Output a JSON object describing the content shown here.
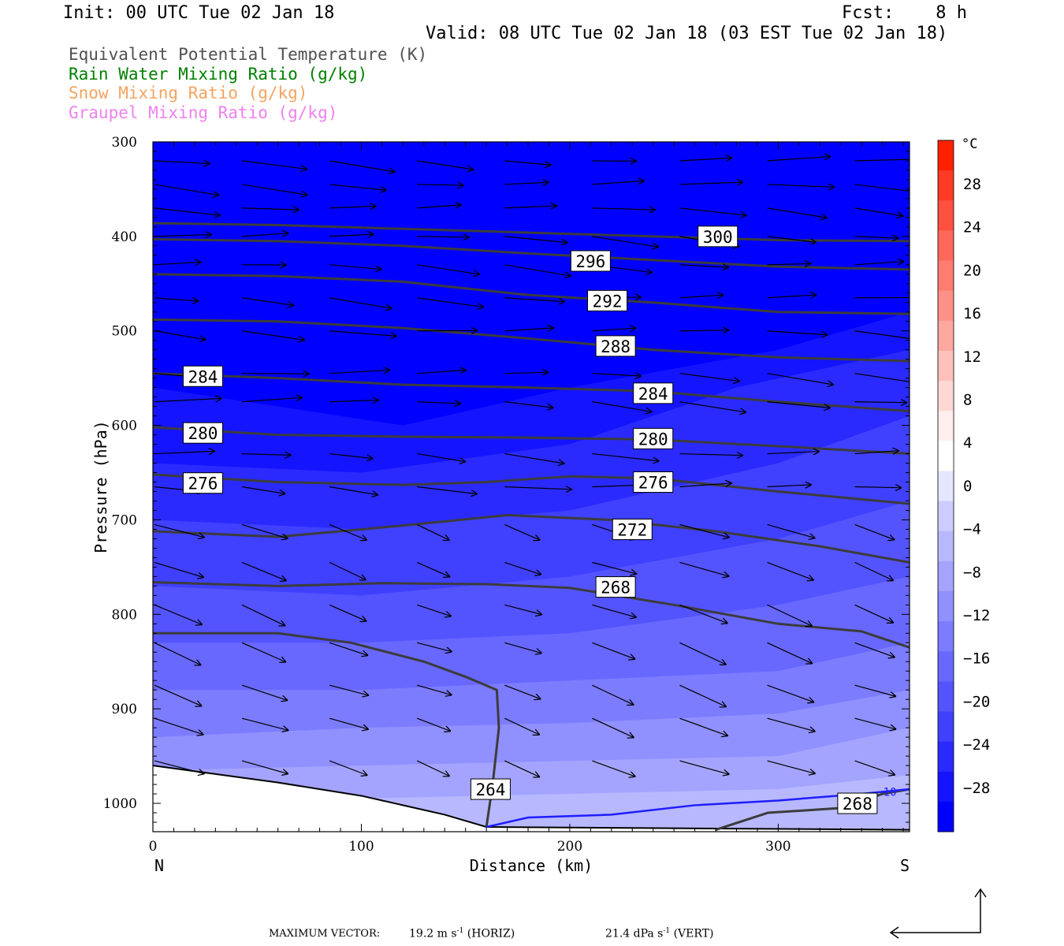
{
  "header": {
    "init": "Init: 00 UTC Tue 02 Jan 18",
    "fcst": "Fcst:    8 h",
    "valid": "Valid: 08 UTC Tue 02 Jan 18 (03 EST Tue 02 Jan 18)"
  },
  "legend": [
    {
      "label": "Equivalent Potential Temperature (K)",
      "color": "#505050"
    },
    {
      "label": "Rain Water Mixing Ratio (g/kg)",
      "color": "#008000"
    },
    {
      "label": "Snow Mixing Ratio (g/kg)",
      "color": "#f4a460"
    },
    {
      "label": "Graupel Mixing Ratio (g/kg)",
      "color": "#ee82ee"
    }
  ],
  "footer": {
    "label": "MAXIMUM VECTOR:",
    "horiz_value": "19.2 m s",
    "horiz_unit": "(HORIZ)",
    "vert_value": "21.4 dPa s",
    "vert_unit": "(VERT)",
    "exponent": "-1"
  },
  "chart_data": {
    "type": "cross-section",
    "xlabel": "Distance (km)",
    "ylabel": "Pressure (hPa)",
    "xlim": [
      0,
      363
    ],
    "ylim": [
      1030,
      300
    ],
    "x_ticks": [
      0,
      100,
      200,
      300
    ],
    "y_ticks": [
      300,
      400,
      500,
      600,
      700,
      800,
      900,
      1000
    ],
    "x_end_labels": {
      "left": "N",
      "right": "S"
    },
    "colorbar": {
      "unit": "°C",
      "labels": [
        28,
        24,
        20,
        16,
        12,
        8,
        4,
        0,
        -4,
        -8,
        -12,
        -16,
        -20,
        -24,
        -28
      ],
      "colors": [
        "#ff2000",
        "#ff3a24",
        "#ff5040",
        "#ff6858",
        "#ff7c70",
        "#ff9088",
        "#ffa8a0",
        "#ffc0bc",
        "#ffd8d4",
        "#ffeeec",
        "#ffffff",
        "#e6e6ff",
        "#ccccff",
        "#b8b8ff",
        "#a4a4ff",
        "#9090ff",
        "#7c7cff",
        "#6868ff",
        "#5454ff",
        "#4040ff",
        "#2a2aff",
        "#1414ff",
        "#0000ff"
      ]
    },
    "theta_e_contours": [
      {
        "label": "300",
        "points": [
          [
            0,
            386
          ],
          [
            60,
            388
          ],
          [
            120,
            392
          ],
          [
            180,
            396
          ],
          [
            240,
            400
          ],
          [
            300,
            404
          ],
          [
            363,
            405
          ]
        ]
      },
      {
        "label": "296",
        "points": [
          [
            0,
            403
          ],
          [
            60,
            405
          ],
          [
            120,
            410
          ],
          [
            180,
            418
          ],
          [
            240,
            425
          ],
          [
            300,
            432
          ],
          [
            363,
            435
          ]
        ]
      },
      {
        "label": "292",
        "points": [
          [
            0,
            440
          ],
          [
            60,
            442
          ],
          [
            120,
            448
          ],
          [
            180,
            462
          ],
          [
            240,
            470
          ],
          [
            300,
            480
          ],
          [
            363,
            482
          ]
        ]
      },
      {
        "label": "288",
        "points": [
          [
            0,
            488
          ],
          [
            60,
            490
          ],
          [
            120,
            497
          ],
          [
            180,
            508
          ],
          [
            240,
            520
          ],
          [
            300,
            528
          ],
          [
            363,
            532
          ]
        ]
      },
      {
        "label": "284",
        "points": [
          [
            0,
            545
          ],
          [
            60,
            550
          ],
          [
            120,
            557
          ],
          [
            180,
            560
          ],
          [
            240,
            564
          ],
          [
            300,
            575
          ],
          [
            363,
            585
          ]
        ]
      },
      {
        "label": "280",
        "points": [
          [
            0,
            602
          ],
          [
            60,
            610
          ],
          [
            120,
            612
          ],
          [
            180,
            613
          ],
          [
            240,
            615
          ],
          [
            300,
            622
          ],
          [
            363,
            630
          ]
        ]
      },
      {
        "label": "276",
        "points": [
          [
            0,
            652
          ],
          [
            60,
            660
          ],
          [
            120,
            663
          ],
          [
            160,
            660
          ],
          [
            200,
            654
          ],
          [
            240,
            656
          ],
          [
            300,
            670
          ],
          [
            363,
            683
          ]
        ]
      },
      {
        "label": "272",
        "points": [
          [
            0,
            712
          ],
          [
            60,
            718
          ],
          [
            120,
            706
          ],
          [
            170,
            695
          ],
          [
            220,
            700
          ],
          [
            270,
            712
          ],
          [
            320,
            728
          ],
          [
            363,
            745
          ]
        ]
      },
      {
        "label": "268",
        "points": [
          [
            0,
            766
          ],
          [
            60,
            770
          ],
          [
            110,
            767
          ],
          [
            160,
            768
          ],
          [
            200,
            772
          ],
          [
            250,
            790
          ],
          [
            300,
            810
          ],
          [
            340,
            818
          ],
          [
            363,
            835
          ]
        ]
      },
      {
        "label": "264",
        "points": [
          [
            0,
            820
          ],
          [
            60,
            820
          ],
          [
            95,
            830
          ],
          [
            130,
            850
          ],
          [
            150,
            866
          ],
          [
            165,
            880
          ],
          [
            166,
            920
          ],
          [
            163,
            980
          ],
          [
            160,
            1025
          ]
        ]
      },
      {
        "label": "268",
        "points": [
          [
            270,
            1028
          ],
          [
            295,
            1010
          ],
          [
            330,
            1005
          ],
          [
            350,
            990
          ],
          [
            363,
            985
          ]
        ]
      }
    ],
    "temperature_isotherm": {
      "label": "-10",
      "points": [
        [
          160,
          1025
        ],
        [
          180,
          1015
        ],
        [
          220,
          1012
        ],
        [
          260,
          1002
        ],
        [
          300,
          997
        ],
        [
          340,
          990
        ],
        [
          363,
          985
        ]
      ]
    },
    "terrain_surface": [
      [
        0,
        960
      ],
      [
        60,
        978
      ],
      [
        100,
        992
      ],
      [
        140,
        1012
      ],
      [
        160,
        1025
      ]
    ],
    "wind_vectors_note": "arrows oriented along flow, see plot"
  }
}
